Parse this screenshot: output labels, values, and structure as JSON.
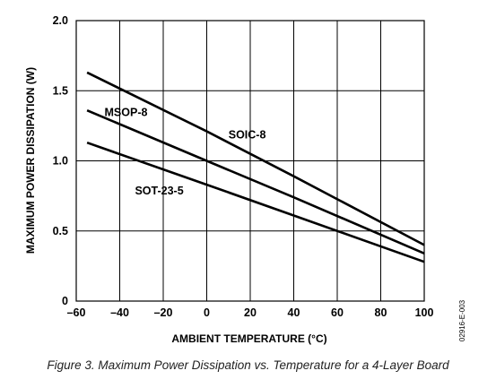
{
  "chart_data": {
    "type": "line",
    "xlabel": "AMBIENT TEMPERATURE (°C)",
    "ylabel": "MAXIMUM POWER DISSIPATION (W)",
    "xlim": [
      -60,
      100
    ],
    "ylim": [
      0,
      2.0
    ],
    "x_ticks": [
      -60,
      -40,
      -20,
      0,
      20,
      40,
      60,
      80,
      100
    ],
    "x_tick_labels": [
      "–60",
      "–40",
      "–20",
      "0",
      "20",
      "40",
      "60",
      "80",
      "100"
    ],
    "y_ticks": [
      0,
      0.5,
      1.0,
      1.5,
      2.0
    ],
    "y_tick_labels": [
      "0",
      "0.5",
      "1.0",
      "1.5",
      "2.0"
    ],
    "grid": true,
    "series": [
      {
        "name": "SOIC-8",
        "x": [
          -55,
          0,
          40,
          100
        ],
        "y": [
          1.63,
          1.21,
          0.89,
          0.4
        ],
        "label_at": [
          10,
          1.16
        ]
      },
      {
        "name": "MSOP-8",
        "x": [
          -55,
          0,
          40,
          100
        ],
        "y": [
          1.36,
          1.0,
          0.74,
          0.34
        ],
        "label_at": [
          -47,
          1.32
        ]
      },
      {
        "name": "SOT-23-5",
        "x": [
          -55,
          0,
          40,
          100
        ],
        "y": [
          1.13,
          0.83,
          0.61,
          0.28
        ],
        "label_at": [
          -33,
          0.76
        ]
      }
    ]
  },
  "figure_code": "02916-E-003",
  "caption": "Figure 3. Maximum Power Dissipation vs. Temperature for a 4-Layer Board"
}
